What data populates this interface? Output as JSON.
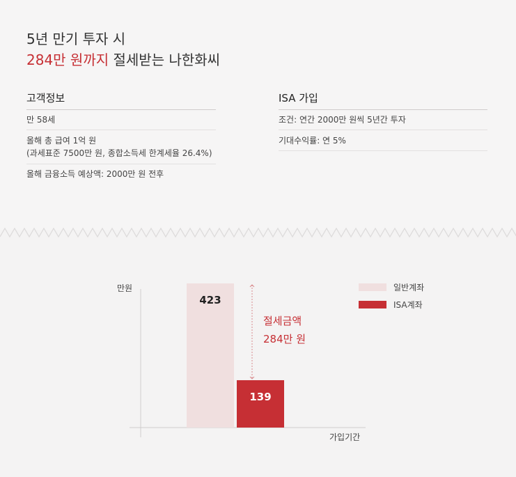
{
  "headline": {
    "line1": "5년 만기 투자 시",
    "line2_accent": "284만 원까지",
    "line2_rest": " 절세받는 나한화씨"
  },
  "customer": {
    "heading": "고객정보",
    "items": [
      {
        "text": "만 58세"
      },
      {
        "text": "올해 총 급여 1억 원",
        "sub": "(과세표준 7500만 원, 종합소득세 한계세율 26.4%)"
      },
      {
        "text": "올해 금융소득 예상액: 2000만 원 전후"
      }
    ]
  },
  "isa": {
    "heading": "ISA 가입",
    "items": [
      {
        "text": "조건: 연간 2000만 원씩 5년간 투자"
      },
      {
        "text": "기대수익률: 연 5%"
      }
    ]
  },
  "colors": {
    "accent": "#c62f34",
    "general_bar": "#f0dfdf",
    "isa_bar": "#c62f34"
  },
  "chart_data": {
    "type": "bar",
    "ylabel": "만원",
    "xlabel": "가입기간",
    "ylim": [
      0,
      423
    ],
    "series": [
      {
        "name": "일반계좌",
        "value": 423,
        "color": "#f0dfdf"
      },
      {
        "name": "ISA계좌",
        "value": 139,
        "color": "#c62f34"
      }
    ],
    "annotation": {
      "line1": "절세금액",
      "line2": "284만 원"
    },
    "legend_position": "top-right",
    "grid": false
  }
}
